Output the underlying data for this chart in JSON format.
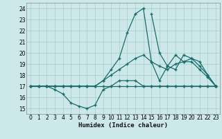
{
  "title": "",
  "xlabel": "Humidex (Indice chaleur)",
  "bg_color": "#cce8e8",
  "grid_color": "#aacccc",
  "line_color": "#1a6b6b",
  "xlim": [
    -0.5,
    23.5
  ],
  "ylim": [
    14.5,
    24.5
  ],
  "xticks": [
    0,
    1,
    2,
    3,
    4,
    5,
    6,
    7,
    8,
    9,
    10,
    11,
    12,
    13,
    14,
    15,
    16,
    17,
    18,
    19,
    20,
    21,
    22,
    23
  ],
  "yticks": [
    15,
    16,
    17,
    18,
    19,
    20,
    21,
    22,
    23,
    24
  ],
  "line1_x": [
    0,
    1,
    2,
    3,
    4,
    5,
    6,
    7,
    8,
    9,
    10,
    11,
    12,
    13,
    14,
    15,
    16,
    17,
    18,
    19,
    20,
    21,
    22,
    23
  ],
  "line1_y": [
    17,
    17,
    17,
    17,
    17,
    17,
    17,
    17,
    17,
    17,
    17,
    17,
    17,
    17,
    17,
    17,
    17,
    17,
    17,
    17,
    17,
    17,
    17,
    17
  ],
  "line2_x": [
    0,
    1,
    2,
    3,
    4,
    5,
    6,
    7,
    8,
    9,
    10,
    11,
    12,
    13,
    14,
    15,
    16,
    17,
    18,
    19,
    20,
    21,
    22,
    23
  ],
  "line2_y": [
    17,
    17,
    17,
    16.7,
    16.3,
    15.5,
    15.2,
    15,
    15.3,
    16.7,
    17,
    17.5,
    17.5,
    17.5,
    17,
    17,
    17,
    17,
    17,
    17,
    17,
    17,
    17,
    17
  ],
  "line3_x": [
    0,
    1,
    2,
    3,
    4,
    5,
    6,
    7,
    8,
    9,
    10,
    11,
    12,
    13,
    14,
    15,
    16,
    17,
    18,
    19,
    20,
    21,
    22,
    23
  ],
  "line3_y": [
    17,
    17,
    17,
    17,
    17,
    17,
    17,
    17,
    17,
    17.5,
    18.5,
    19.5,
    21.8,
    23.5,
    24,
    19.2,
    17.5,
    18.8,
    19.8,
    19.2,
    19.2,
    18.5,
    17.8,
    17
  ],
  "line4_x": [
    0,
    1,
    2,
    3,
    4,
    5,
    6,
    7,
    8,
    9,
    10,
    11,
    12,
    13,
    14,
    15,
    16,
    17,
    18,
    19,
    20,
    21,
    22,
    23
  ],
  "line4_y": [
    17,
    17,
    17,
    17,
    17,
    17,
    17,
    17,
    17,
    17.5,
    18,
    18.5,
    19,
    19.5,
    19.8,
    19.2,
    18.8,
    18.5,
    19,
    19.2,
    19.5,
    18.8,
    18,
    17
  ],
  "line5_x": [
    15,
    16,
    17,
    18,
    19,
    20,
    21,
    22,
    23
  ],
  "line5_y": [
    23.5,
    20,
    18.8,
    18.5,
    19.8,
    19.5,
    19.2,
    18,
    17
  ]
}
